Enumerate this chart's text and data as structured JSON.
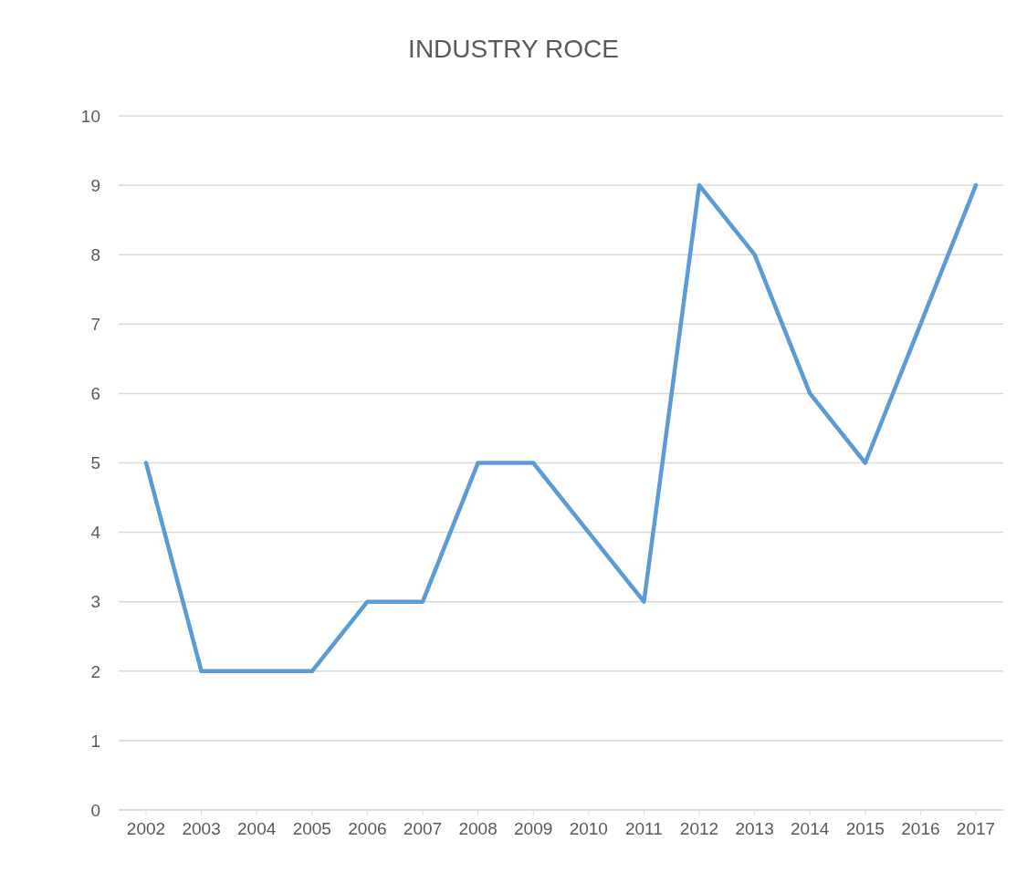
{
  "chart_data": {
    "type": "line",
    "title": "INDUSTRY ROCE",
    "categories": [
      "2002",
      "2003",
      "2004",
      "2005",
      "2006",
      "2007",
      "2008",
      "2009",
      "2010",
      "2011",
      "2012",
      "2013",
      "2014",
      "2015",
      "2016",
      "2017"
    ],
    "series": [
      {
        "color": "#5b9bd5",
        "values": [
          5,
          2,
          2,
          2,
          3,
          3,
          5,
          5,
          4,
          3,
          9,
          8,
          6,
          5,
          7,
          9
        ]
      }
    ],
    "ylim": [
      0,
      10
    ],
    "yticks": [
      0,
      1,
      2,
      3,
      4,
      5,
      6,
      7,
      8,
      9,
      10
    ],
    "grid": "y",
    "legend": false
  }
}
